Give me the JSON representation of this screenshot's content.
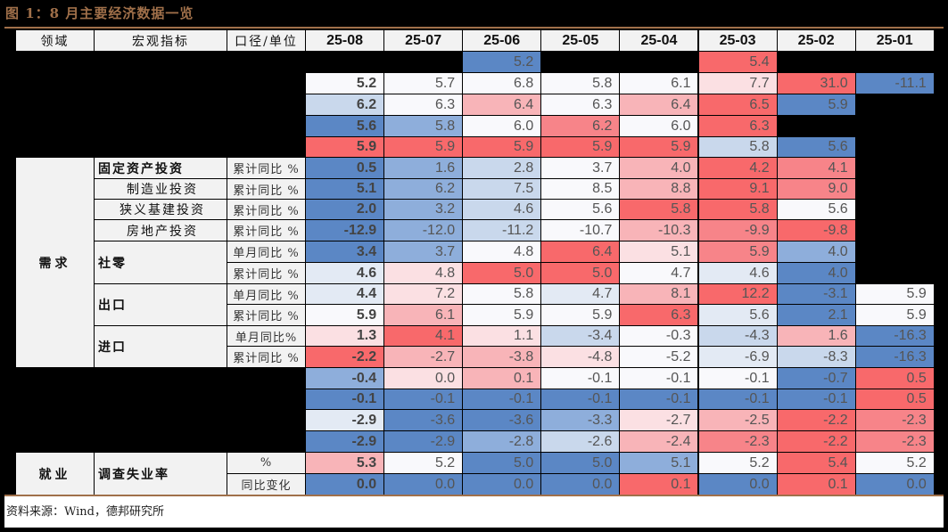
{
  "title": "图 1：8 月主要经济数据一览",
  "source": "资料来源：Wind，德邦研究所",
  "header": {
    "domain": "领域",
    "indicator": "宏观指标",
    "unit": "口径/单位",
    "months": [
      "25-08",
      "25-07",
      "25-06",
      "25-05",
      "25-04",
      "25-03",
      "25-02",
      "25-01"
    ]
  },
  "colors": {
    "strong_blue": "#5b87c5",
    "mid_blue": "#8eaedb",
    "light_blue": "#c9d8ec",
    "pale_blue": "#e3eaf4",
    "white": "#f9f9fc",
    "pale_red": "#fbe0e3",
    "light_red": "#f8b4b8",
    "mid_red": "#f78489",
    "strong_red": "#f8696b",
    "label_bg": "#f2f2f2",
    "title": "#a0704a"
  },
  "domains": [
    {
      "label": "需求",
      "rows": [
        6,
        15
      ]
    },
    {
      "label": "就业",
      "rows": [
        20,
        21
      ]
    }
  ],
  "indicators": [
    {
      "label": "固定资产投资",
      "style": "bold",
      "rows": [
        6,
        6
      ]
    },
    {
      "label": "制造业投资",
      "style": "sub",
      "rows": [
        7,
        7
      ]
    },
    {
      "label": "狭义基建投资",
      "style": "sub",
      "rows": [
        8,
        8
      ]
    },
    {
      "label": "房地产投资",
      "style": "sub",
      "rows": [
        9,
        9
      ]
    },
    {
      "label": "社零",
      "style": "bold",
      "rows": [
        10,
        11
      ]
    },
    {
      "label": "出口",
      "style": "bold",
      "rows": [
        12,
        13
      ]
    },
    {
      "label": "进口",
      "style": "bold",
      "rows": [
        14,
        15
      ]
    },
    {
      "label": "调查失业率",
      "style": "bold",
      "rows": [
        20,
        21
      ]
    }
  ],
  "units": [
    {
      "row": 6,
      "label": "累计同比 %"
    },
    {
      "row": 7,
      "label": "累计同比 %"
    },
    {
      "row": 8,
      "label": "累计同比 %"
    },
    {
      "row": 9,
      "label": "累计同比 %"
    },
    {
      "row": 10,
      "label": "单月同比 %"
    },
    {
      "row": 11,
      "label": "累计同比 %"
    },
    {
      "row": 12,
      "label": "单月同比 %"
    },
    {
      "row": 13,
      "label": "累计同比 %"
    },
    {
      "row": 14,
      "label": "单月同比%"
    },
    {
      "row": 15,
      "label": "累计同比 %"
    },
    {
      "row": 20,
      "label": "%"
    },
    {
      "row": 21,
      "label": "同比变化"
    }
  ],
  "rows": [
    {
      "id": 1,
      "cells": [
        null,
        null,
        [
          "5.2",
          "strong_blue"
        ],
        null,
        null,
        [
          "5.4",
          "strong_red"
        ],
        null,
        null
      ]
    },
    {
      "id": 2,
      "cells": [
        [
          "5.2",
          "white"
        ],
        [
          "5.7",
          "white"
        ],
        [
          "6.8",
          "white"
        ],
        [
          "5.8",
          "white"
        ],
        [
          "6.1",
          "white"
        ],
        [
          "7.7",
          "pale_red"
        ],
        [
          "31.0",
          "strong_red"
        ],
        [
          "-11.1",
          "strong_blue"
        ]
      ]
    },
    {
      "id": 3,
      "cells": [
        [
          "6.2",
          "light_blue"
        ],
        [
          "6.3",
          "white"
        ],
        [
          "6.4",
          "light_red"
        ],
        [
          "6.3",
          "white"
        ],
        [
          "6.4",
          "light_red"
        ],
        [
          "6.5",
          "strong_red"
        ],
        [
          "5.9",
          "strong_blue"
        ],
        null
      ]
    },
    {
      "id": 4,
      "cells": [
        [
          "5.6",
          "strong_blue"
        ],
        [
          "5.8",
          "mid_blue"
        ],
        [
          "6.0",
          "white"
        ],
        [
          "6.2",
          "mid_red"
        ],
        [
          "6.0",
          "white"
        ],
        [
          "6.3",
          "strong_red"
        ],
        null,
        null
      ]
    },
    {
      "id": 5,
      "cells": [
        [
          "5.9",
          "strong_red"
        ],
        [
          "5.9",
          "strong_red"
        ],
        [
          "5.9",
          "strong_red"
        ],
        [
          "5.9",
          "strong_red"
        ],
        [
          "5.9",
          "strong_red"
        ],
        [
          "5.8",
          "light_blue"
        ],
        [
          "5.6",
          "strong_blue"
        ],
        null
      ]
    },
    {
      "id": 6,
      "cells": [
        [
          "0.5",
          "strong_blue"
        ],
        [
          "1.6",
          "mid_blue"
        ],
        [
          "2.8",
          "light_blue"
        ],
        [
          "3.7",
          "white"
        ],
        [
          "4.0",
          "light_red"
        ],
        [
          "4.2",
          "strong_red"
        ],
        [
          "4.1",
          "mid_red"
        ],
        null
      ]
    },
    {
      "id": 7,
      "cells": [
        [
          "5.1",
          "strong_blue"
        ],
        [
          "6.2",
          "mid_blue"
        ],
        [
          "7.5",
          "light_blue"
        ],
        [
          "8.5",
          "white"
        ],
        [
          "8.8",
          "light_red"
        ],
        [
          "9.1",
          "strong_red"
        ],
        [
          "9.0",
          "mid_red"
        ],
        null
      ]
    },
    {
      "id": 8,
      "cells": [
        [
          "2.0",
          "strong_blue"
        ],
        [
          "3.2",
          "mid_blue"
        ],
        [
          "4.6",
          "light_blue"
        ],
        [
          "5.6",
          "white"
        ],
        [
          "5.8",
          "strong_red"
        ],
        [
          "5.8",
          "strong_red"
        ],
        [
          "5.6",
          "white"
        ],
        null
      ]
    },
    {
      "id": 9,
      "cells": [
        [
          "-12.9",
          "strong_blue"
        ],
        [
          "-12.0",
          "mid_blue"
        ],
        [
          "-11.2",
          "light_blue"
        ],
        [
          "-10.7",
          "white"
        ],
        [
          "-10.3",
          "light_red"
        ],
        [
          "-9.9",
          "mid_red"
        ],
        [
          "-9.8",
          "strong_red"
        ],
        null
      ]
    },
    {
      "id": 10,
      "cells": [
        [
          "3.4",
          "strong_blue"
        ],
        [
          "3.7",
          "mid_blue"
        ],
        [
          "4.8",
          "white"
        ],
        [
          "6.4",
          "strong_red"
        ],
        [
          "5.1",
          "pale_red"
        ],
        [
          "5.9",
          "mid_red"
        ],
        [
          "4.0",
          "mid_blue"
        ],
        null
      ]
    },
    {
      "id": 11,
      "cells": [
        [
          "4.6",
          "pale_blue"
        ],
        [
          "4.8",
          "pale_red"
        ],
        [
          "5.0",
          "strong_red"
        ],
        [
          "5.0",
          "strong_red"
        ],
        [
          "4.7",
          "white"
        ],
        [
          "4.6",
          "pale_blue"
        ],
        [
          "4.0",
          "strong_blue"
        ],
        null
      ]
    },
    {
      "id": 12,
      "cells": [
        [
          "4.4",
          "pale_blue"
        ],
        [
          "7.2",
          "pale_red"
        ],
        [
          "5.8",
          "white"
        ],
        [
          "4.7",
          "pale_blue"
        ],
        [
          "8.1",
          "light_red"
        ],
        [
          "12.2",
          "strong_red"
        ],
        [
          "-3.1",
          "strong_blue"
        ],
        [
          "5.9",
          "white"
        ]
      ]
    },
    {
      "id": 13,
      "cells": [
        [
          "5.9",
          "white"
        ],
        [
          "6.1",
          "light_red"
        ],
        [
          "5.9",
          "white"
        ],
        [
          "5.9",
          "white"
        ],
        [
          "6.3",
          "strong_red"
        ],
        [
          "5.6",
          "pale_blue"
        ],
        [
          "2.1",
          "strong_blue"
        ],
        [
          "5.9",
          "white"
        ]
      ]
    },
    {
      "id": 14,
      "cells": [
        [
          "1.3",
          "pale_red"
        ],
        [
          "4.1",
          "strong_red"
        ],
        [
          "1.1",
          "pale_red"
        ],
        [
          "-3.4",
          "light_blue"
        ],
        [
          "-0.3",
          "white"
        ],
        [
          "-4.3",
          "light_blue"
        ],
        [
          "1.6",
          "light_red"
        ],
        [
          "-16.3",
          "strong_blue"
        ]
      ]
    },
    {
      "id": 15,
      "cells": [
        [
          "-2.2",
          "strong_red"
        ],
        [
          "-2.7",
          "light_red"
        ],
        [
          "-3.8",
          "light_red"
        ],
        [
          "-4.8",
          "pale_red"
        ],
        [
          "-5.2",
          "white"
        ],
        [
          "-6.9",
          "pale_blue"
        ],
        [
          "-8.3",
          "light_blue"
        ],
        [
          "-16.3",
          "strong_blue"
        ]
      ]
    },
    {
      "id": 16,
      "cells": [
        [
          "-0.4",
          "mid_blue"
        ],
        [
          "0.0",
          "pale_red"
        ],
        [
          "0.1",
          "light_red"
        ],
        [
          "-0.1",
          "white"
        ],
        [
          "-0.1",
          "white"
        ],
        [
          "-0.1",
          "white"
        ],
        [
          "-0.7",
          "strong_blue"
        ],
        [
          "0.5",
          "strong_red"
        ]
      ]
    },
    {
      "id": 17,
      "cells": [
        [
          "-0.1",
          "strong_blue"
        ],
        [
          "-0.1",
          "strong_blue"
        ],
        [
          "-0.1",
          "strong_blue"
        ],
        [
          "-0.1",
          "strong_blue"
        ],
        [
          "-0.1",
          "strong_blue"
        ],
        [
          "-0.1",
          "strong_blue"
        ],
        [
          "-0.1",
          "strong_blue"
        ],
        [
          "0.5",
          "strong_red"
        ]
      ]
    },
    {
      "id": 18,
      "cells": [
        [
          "-2.9",
          "pale_blue"
        ],
        [
          "-3.6",
          "strong_blue"
        ],
        [
          "-3.6",
          "strong_blue"
        ],
        [
          "-3.3",
          "mid_blue"
        ],
        [
          "-2.7",
          "pale_red"
        ],
        [
          "-2.5",
          "light_red"
        ],
        [
          "-2.2",
          "strong_red"
        ],
        [
          "-2.3",
          "mid_red"
        ]
      ]
    },
    {
      "id": 19,
      "cells": [
        [
          "-2.9",
          "strong_blue"
        ],
        [
          "-2.9",
          "strong_blue"
        ],
        [
          "-2.8",
          "mid_blue"
        ],
        [
          "-2.6",
          "light_blue"
        ],
        [
          "-2.4",
          "light_red"
        ],
        [
          "-2.3",
          "mid_red"
        ],
        [
          "-2.2",
          "strong_red"
        ],
        [
          "-2.3",
          "mid_red"
        ]
      ]
    },
    {
      "id": 20,
      "cells": [
        [
          "5.3",
          "light_red"
        ],
        [
          "5.2",
          "white"
        ],
        [
          "5.0",
          "strong_blue"
        ],
        [
          "5.0",
          "strong_blue"
        ],
        [
          "5.1",
          "mid_blue"
        ],
        [
          "5.2",
          "white"
        ],
        [
          "5.4",
          "strong_red"
        ],
        [
          "5.2",
          "white"
        ]
      ]
    },
    {
      "id": 21,
      "cells": [
        [
          "0.0",
          "strong_blue"
        ],
        [
          "0.0",
          "strong_blue"
        ],
        [
          "0.0",
          "strong_blue"
        ],
        [
          "0.0",
          "strong_blue"
        ],
        [
          "0.1",
          "strong_red"
        ],
        [
          "0.0",
          "strong_blue"
        ],
        [
          "0.1",
          "strong_red"
        ],
        [
          "0.0",
          "strong_blue"
        ]
      ]
    }
  ]
}
